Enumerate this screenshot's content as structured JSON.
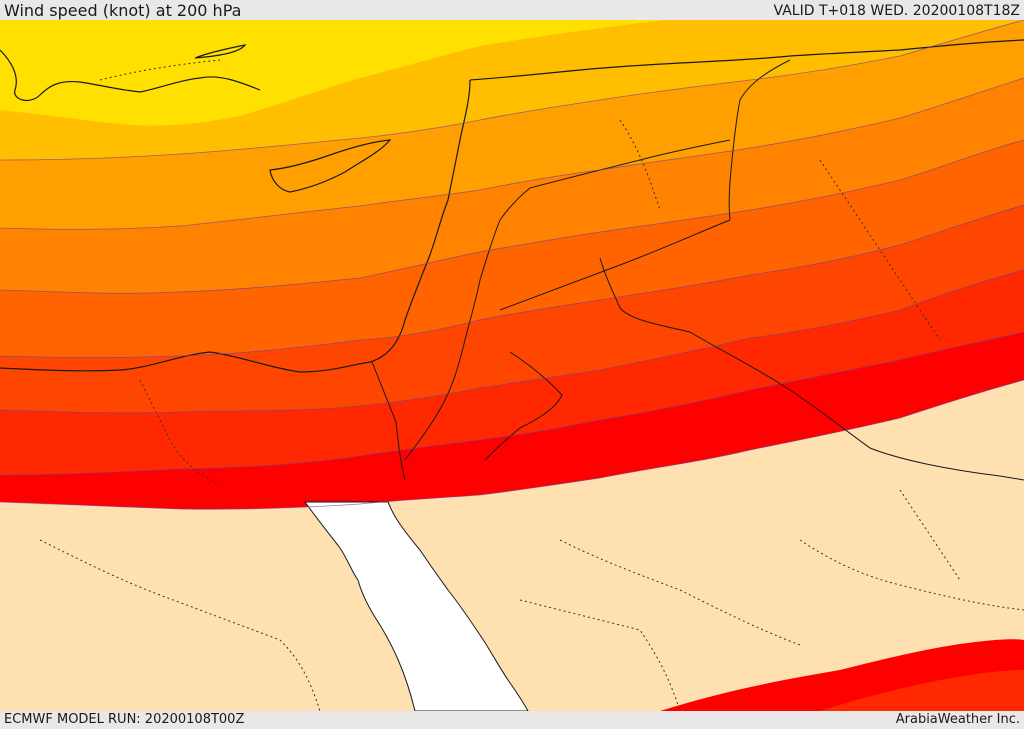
{
  "header": {
    "title": "Wind speed (knot) at 200 hPa",
    "valid": "VALID T+018 WED. 20200108T18Z"
  },
  "footer": {
    "model_run": "ECMWF MODEL RUN: 20200108T00Z",
    "credit": "ArabiaWeather Inc."
  },
  "colors": {
    "band_1": "#ffe000",
    "band_2": "#ffbf00",
    "band_3": "#ffa000",
    "band_4": "#ff8200",
    "band_5": "#ff6400",
    "band_6": "#ff4600",
    "band_7": "#ff2800",
    "band_8": "#ff0000",
    "calm": "#ffe0b0",
    "sea": "#ffffff",
    "borders": "#1a1a1a"
  }
}
